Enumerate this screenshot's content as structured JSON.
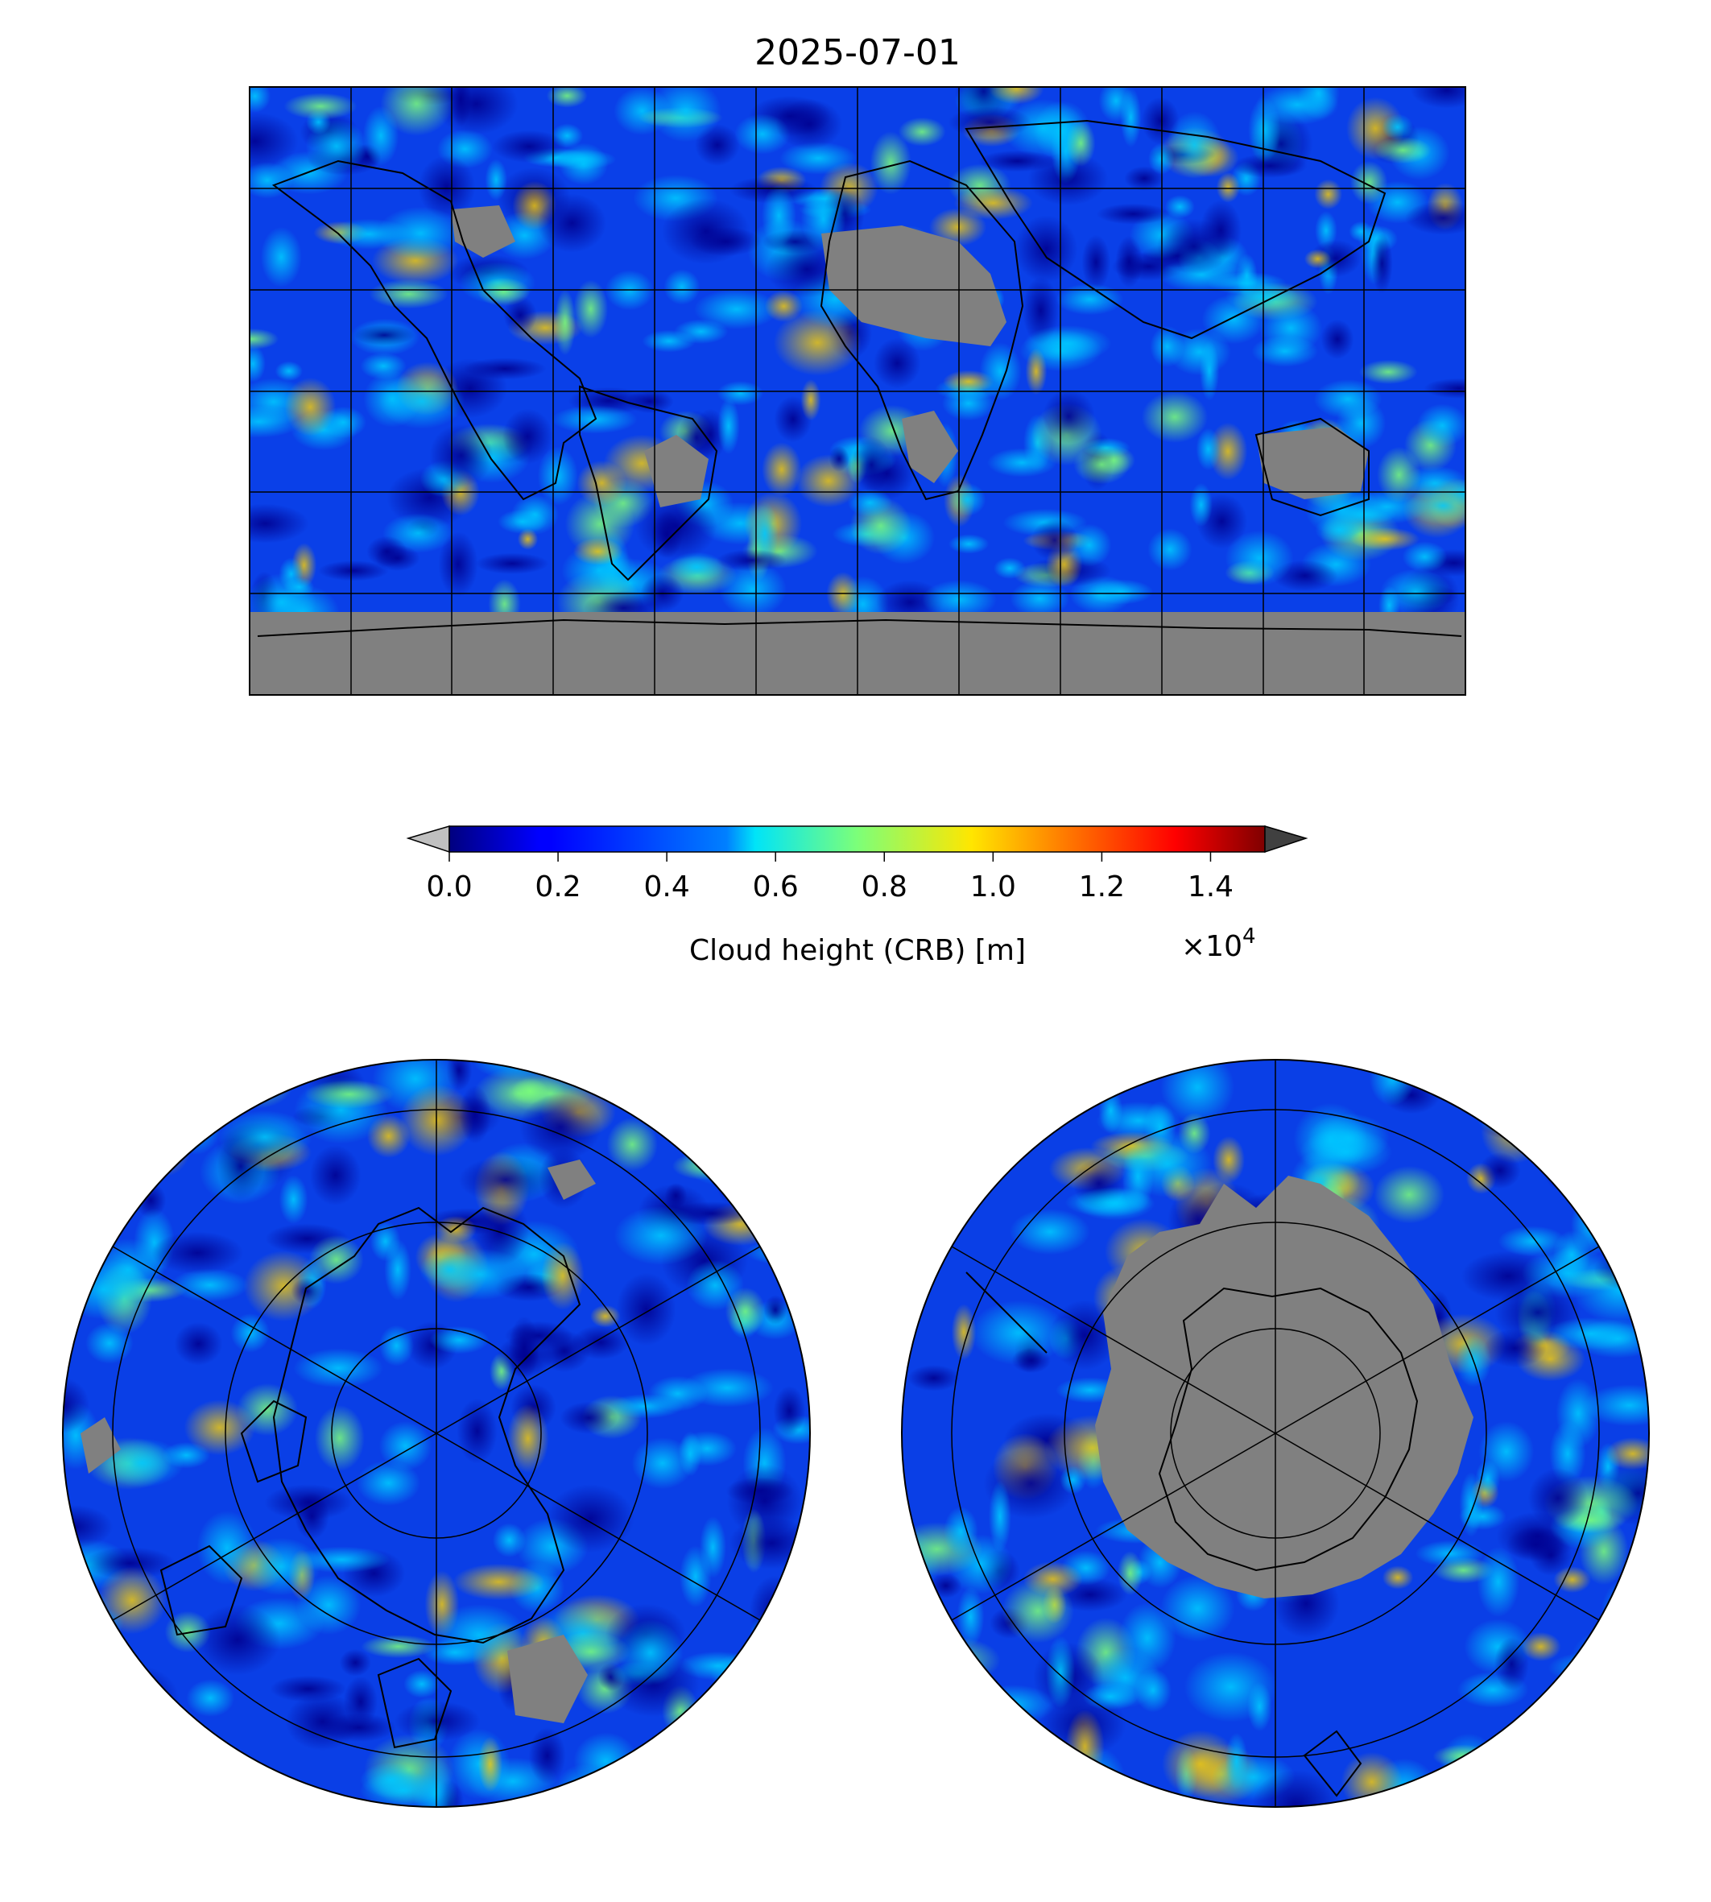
{
  "title": "2025-07-01",
  "colorbar": {
    "label": "Cloud height (CRB) [m]",
    "multiplier_base": "×10",
    "multiplier_exp": "4",
    "ticks": [
      "0.0",
      "0.2",
      "0.4",
      "0.6",
      "0.8",
      "1.0",
      "1.2",
      "1.4"
    ],
    "tick_values": [
      0.0,
      0.2,
      0.4,
      0.6,
      0.8,
      1.0,
      1.2,
      1.4
    ],
    "range": [
      0.0,
      1.5
    ],
    "colormap": "jet",
    "under_color": "#c0c0c0",
    "over_color": "#404040",
    "extend": "both"
  },
  "colors": {
    "no_data": "#808080",
    "coastline": "#000000",
    "gridline": "#000000"
  },
  "maps": {
    "global": {
      "projection": "PlateCarree",
      "lon_range": [
        -180,
        180
      ],
      "lat_range": [
        -90,
        90
      ],
      "grid_step_deg": 30
    },
    "north": {
      "projection": "NorthPolarStereo"
    },
    "south": {
      "projection": "SouthPolarStereo"
    }
  }
}
